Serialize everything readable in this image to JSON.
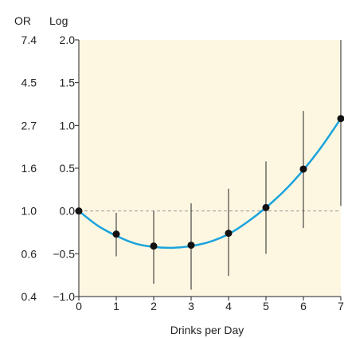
{
  "chart_data": {
    "type": "line",
    "title": "",
    "xlabel": "Drinks per Day",
    "left_axis_title": "OR",
    "ylabel": "Log",
    "xlim": [
      0,
      7
    ],
    "ylim": [
      -1.0,
      2.0
    ],
    "x_ticks": [
      "0",
      "1",
      "2",
      "3",
      "4",
      "5",
      "6",
      "7"
    ],
    "y_ticks": [
      {
        "value": 2.0,
        "log": "2.0",
        "or": "7.4"
      },
      {
        "value": 1.5,
        "log": "1.5",
        "or": "4.5"
      },
      {
        "value": 1.0,
        "log": "1.0",
        "or": "2.7"
      },
      {
        "value": 0.5,
        "log": "0.5",
        "or": "1.6"
      },
      {
        "value": 0.0,
        "log": "0.0",
        "or": "1.0"
      },
      {
        "value": -0.5,
        "log": "−0.5",
        "or": "0.6"
      },
      {
        "value": -1.0,
        "log": "−1.0",
        "or": "0.4"
      }
    ],
    "reference_line": {
      "y": 0.0,
      "style": "dashed"
    },
    "points": [
      {
        "x": 0,
        "y": 0.0,
        "low": 0.0,
        "high": 0.0
      },
      {
        "x": 1,
        "y": -0.27,
        "low": -0.53,
        "high": -0.02
      },
      {
        "x": 2,
        "y": -0.41,
        "low": -0.85,
        "high": 0.0
      },
      {
        "x": 3,
        "y": -0.4,
        "low": -0.92,
        "high": 0.09
      },
      {
        "x": 4,
        "y": -0.26,
        "low": -0.76,
        "high": 0.26
      },
      {
        "x": 5,
        "y": 0.04,
        "low": -0.5,
        "high": 0.58
      },
      {
        "x": 6,
        "y": 0.49,
        "low": -0.2,
        "high": 1.17
      },
      {
        "x": 7,
        "y": 1.08,
        "low": 0.06,
        "high": 2.0
      }
    ],
    "curve": [
      {
        "x": 0,
        "y": 0.0
      },
      {
        "x": 0.5,
        "y": -0.17
      },
      {
        "x": 1,
        "y": -0.29
      },
      {
        "x": 1.5,
        "y": -0.38
      },
      {
        "x": 2,
        "y": -0.42
      },
      {
        "x": 2.5,
        "y": -0.43
      },
      {
        "x": 3,
        "y": -0.41
      },
      {
        "x": 3.5,
        "y": -0.36
      },
      {
        "x": 4,
        "y": -0.27
      },
      {
        "x": 4.5,
        "y": -0.13
      },
      {
        "x": 5,
        "y": 0.04
      },
      {
        "x": 5.5,
        "y": 0.24
      },
      {
        "x": 6,
        "y": 0.48
      },
      {
        "x": 6.5,
        "y": 0.76
      },
      {
        "x": 7,
        "y": 1.08
      }
    ],
    "colors": {
      "plot_background": "#fdf7e2",
      "curve": "#1ba3dc",
      "points": "#111111",
      "error_bars": "#222222",
      "reference_line": "#9a9a9a",
      "axes": "#222222"
    }
  }
}
